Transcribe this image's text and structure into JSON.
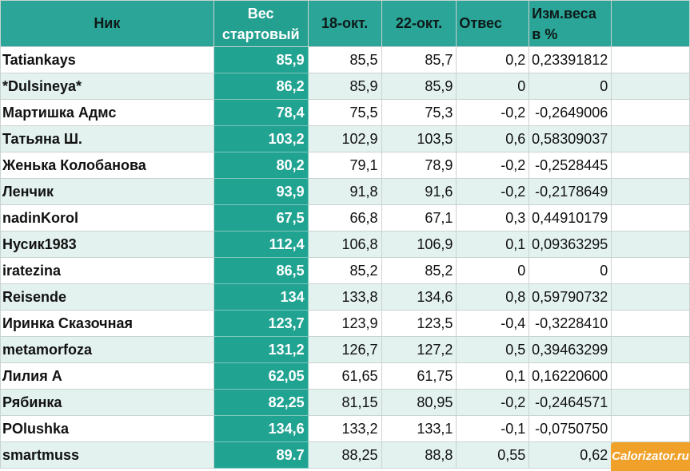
{
  "columns": {
    "nick": "Ник",
    "start_line1": "Вес",
    "start_line2": "стартовый",
    "d1": "18-окт.",
    "d2": "22-окт.",
    "loss": "Отвес",
    "pct_line1": "Изм.веса",
    "pct_line2": "в %"
  },
  "rows": [
    {
      "nick": "Tatiankays",
      "start": "85,9",
      "d1": "85,5",
      "d2": "85,7",
      "loss": "0,2",
      "pct": "0,23391812"
    },
    {
      "nick": "*Dulsineya*",
      "start": "86,2",
      "d1": "85,9",
      "d2": "85,9",
      "loss": "0",
      "pct": "0"
    },
    {
      "nick": "Мартишка Адмс",
      "start": "78,4",
      "d1": "75,5",
      "d2": "75,3",
      "loss": "-0,2",
      "pct": "-0,2649006"
    },
    {
      "nick": "Татьяна Ш.",
      "start": "103,2",
      "d1": "102,9",
      "d2": "103,5",
      "loss": "0,6",
      "pct": "0,58309037"
    },
    {
      "nick": "Женька Колобанова",
      "start": "80,2",
      "d1": "79,1",
      "d2": "78,9",
      "loss": "-0,2",
      "pct": "-0,2528445"
    },
    {
      "nick": "Ленчик",
      "start": "93,9",
      "d1": "91,8",
      "d2": "91,6",
      "loss": "-0,2",
      "pct": "-0,2178649"
    },
    {
      "nick": "nadinKorol",
      "start": "67,5",
      "d1": "66,8",
      "d2": "67,1",
      "loss": "0,3",
      "pct": "0,44910179"
    },
    {
      "nick": "Нусик1983",
      "start": "112,4",
      "d1": "106,8",
      "d2": "106,9",
      "loss": "0,1",
      "pct": "0,09363295"
    },
    {
      "nick": "iratezina",
      "start": "86,5",
      "d1": "85,2",
      "d2": "85,2",
      "loss": "0",
      "pct": "0"
    },
    {
      "nick": "Reisende",
      "start": "134",
      "d1": "133,8",
      "d2": "134,6",
      "loss": "0,8",
      "pct": "0,59790732"
    },
    {
      "nick": "Иринка Сказочная",
      "start": "123,7",
      "d1": "123,9",
      "d2": "123,5",
      "loss": "-0,4",
      "pct": "-0,3228410"
    },
    {
      "nick": "metamorfoza",
      "start": "131,2",
      "d1": "126,7",
      "d2": "127,2",
      "loss": "0,5",
      "pct": "0,39463299"
    },
    {
      "nick": "Лилия А",
      "start": "62,05",
      "d1": "61,65",
      "d2": "61,75",
      "loss": "0,1",
      "pct": "0,16220600"
    },
    {
      "nick": "Рябинка",
      "start": "82,25",
      "d1": "81,15",
      "d2": "80,95",
      "loss": "-0,2",
      "pct": "-0,2464571"
    },
    {
      "nick": "POlushka",
      "start": "134,6",
      "d1": "133,2",
      "d2": "133,1",
      "loss": "-0,1",
      "pct": "-0,0750750"
    },
    {
      "nick": "smartmuss",
      "start": "89.7",
      "d1": "88,25",
      "d2": "88,8",
      "loss": "0,55",
      "pct": "0,62"
    }
  ],
  "watermark": "Calorizator.ru"
}
